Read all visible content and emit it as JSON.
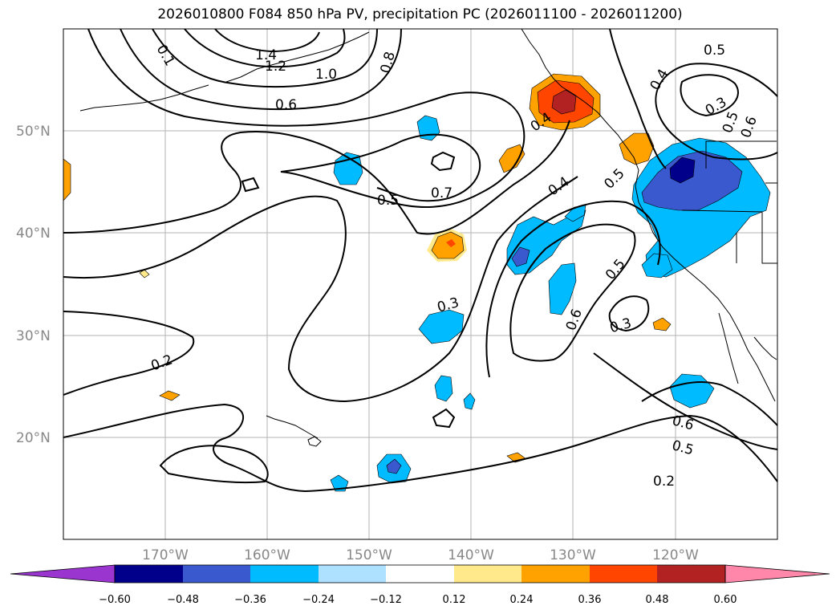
{
  "title": "2026010800 F084 850 hPa PV, precipitation PC (2026011100 - 2026011200)",
  "map": {
    "lat_labels": [
      "50°N",
      "40°N",
      "30°N",
      "20°N"
    ],
    "lon_labels": [
      "170°W",
      "160°W",
      "150°W",
      "140°W",
      "130°W",
      "120°W"
    ],
    "contour_labels": [
      "0.1",
      "1.4",
      "1.2",
      "1.0",
      "0.8",
      "0.6",
      "0.5",
      "0.7",
      "0.5",
      "0.3",
      "0.2",
      "0.4",
      "0.4",
      "0.5",
      "0.5",
      "0.6",
      "0.3",
      "0.6",
      "0.5",
      "0.2",
      "0.4",
      "0.3",
      "0.6",
      "0.5"
    ]
  },
  "colorbar": {
    "ticks": [
      "−0.60",
      "−0.48",
      "−0.36",
      "−0.24",
      "−0.12",
      "0.12",
      "0.24",
      "0.36",
      "0.48",
      "0.60"
    ],
    "colors": {
      "under": "#9a35d0",
      "c1": "#00008b",
      "c2": "#3a59cf",
      "c3": "#00bbff",
      "c4": "#aee0ff",
      "neutral": "#ffffff",
      "p1": "#ffe98a",
      "p2": "#ffa200",
      "p3": "#ff4500",
      "p4": "#b22222",
      "over": "#ff88aa"
    }
  }
}
